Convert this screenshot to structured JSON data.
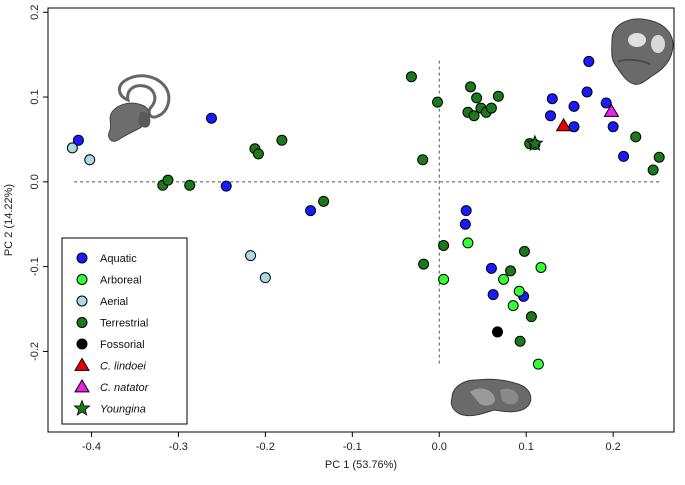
{
  "chart_data": {
    "type": "scatter",
    "title": "",
    "xlabel": "PC 1 (53.76%)",
    "ylabel": "PC 2 (14.22%)",
    "xlim": [
      -0.45,
      0.27
    ],
    "ylim": [
      -0.295,
      0.205
    ],
    "x_ticks": [
      -0.4,
      -0.3,
      -0.2,
      -0.1,
      0.0,
      0.1,
      0.2
    ],
    "x_tick_labels": [
      "-0.4",
      "-0.3",
      "-0.2",
      "-0.1",
      "0.0",
      "0.1",
      "0.2"
    ],
    "y_ticks": [
      -0.2,
      -0.1,
      0.0,
      0.1,
      0.2
    ],
    "y_tick_labels": [
      "-0.2",
      "-0.1",
      "0.0",
      "0.1",
      "0.2"
    ],
    "reference_lines": {
      "h": 0.0,
      "v": 0.0,
      "style": "dashed"
    },
    "legend_position": "bottom-left",
    "series": [
      {
        "name": "Aquatic",
        "marker": "circle",
        "color": "#1a1aff",
        "points": [
          [
            -0.415,
            0.049
          ],
          [
            -0.262,
            0.075
          ],
          [
            -0.245,
            -0.005
          ],
          [
            -0.148,
            -0.034
          ],
          [
            0.031,
            -0.034
          ],
          [
            0.03,
            -0.05
          ],
          [
            0.06,
            -0.102
          ],
          [
            0.062,
            -0.133
          ],
          [
            0.097,
            -0.135
          ],
          [
            0.13,
            0.098
          ],
          [
            0.128,
            0.078
          ],
          [
            0.155,
            0.089
          ],
          [
            0.155,
            0.065
          ],
          [
            0.17,
            0.106
          ],
          [
            0.172,
            0.142
          ],
          [
            0.192,
            0.093
          ],
          [
            0.2,
            0.065
          ],
          [
            0.212,
            0.03
          ]
        ]
      },
      {
        "name": "Arboreal",
        "marker": "circle",
        "color": "#33ff33",
        "points": [
          [
            0.005,
            -0.115
          ],
          [
            0.033,
            -0.072
          ],
          [
            0.074,
            -0.115
          ],
          [
            0.085,
            -0.146
          ],
          [
            0.092,
            -0.129
          ],
          [
            0.117,
            -0.101
          ],
          [
            0.114,
            -0.215
          ]
        ]
      },
      {
        "name": "Aerial",
        "marker": "circle",
        "color": "#add8e6",
        "points": [
          [
            -0.422,
            0.04
          ],
          [
            -0.402,
            0.026
          ],
          [
            -0.217,
            -0.087
          ],
          [
            -0.2,
            -0.113
          ]
        ]
      },
      {
        "name": "Terrestrial",
        "marker": "circle",
        "color": "#1a7a1a",
        "points": [
          [
            -0.318,
            -0.004
          ],
          [
            -0.312,
            0.002
          ],
          [
            -0.287,
            -0.004
          ],
          [
            -0.212,
            0.039
          ],
          [
            -0.208,
            0.033
          ],
          [
            -0.181,
            0.049
          ],
          [
            -0.133,
            -0.023
          ],
          [
            -0.032,
            0.124
          ],
          [
            -0.019,
            0.026
          ],
          [
            -0.018,
            -0.097
          ],
          [
            -0.002,
            0.094
          ],
          [
            0.005,
            -0.075
          ],
          [
            0.036,
            0.112
          ],
          [
            0.033,
            0.082
          ],
          [
            0.04,
            0.078
          ],
          [
            0.043,
            0.099
          ],
          [
            0.048,
            0.087
          ],
          [
            0.054,
            0.082
          ],
          [
            0.06,
            0.087
          ],
          [
            0.068,
            0.101
          ],
          [
            0.082,
            -0.105
          ],
          [
            0.098,
            -0.082
          ],
          [
            0.104,
            0.045
          ],
          [
            0.11,
            0.044
          ],
          [
            0.093,
            -0.188
          ],
          [
            0.106,
            -0.159
          ],
          [
            0.226,
            0.053
          ],
          [
            0.246,
            0.014
          ],
          [
            0.253,
            0.029
          ]
        ]
      },
      {
        "name": "Fossorial",
        "marker": "circle",
        "color": "#000000",
        "points": [
          [
            0.067,
            -0.177
          ]
        ]
      },
      {
        "name": "C. lindoei",
        "marker": "triangle",
        "color": "#ee0000",
        "italic": true,
        "points": [
          [
            0.143,
            0.066
          ]
        ]
      },
      {
        "name": "C. natator",
        "marker": "triangle",
        "color": "#ee22ee",
        "italic": true,
        "points": [
          [
            0.198,
            0.083
          ]
        ]
      },
      {
        "name": "Youngina",
        "marker": "star",
        "color": "#1a7a1a",
        "italic": true,
        "points": [
          [
            0.11,
            0.045
          ]
        ]
      }
    ]
  }
}
